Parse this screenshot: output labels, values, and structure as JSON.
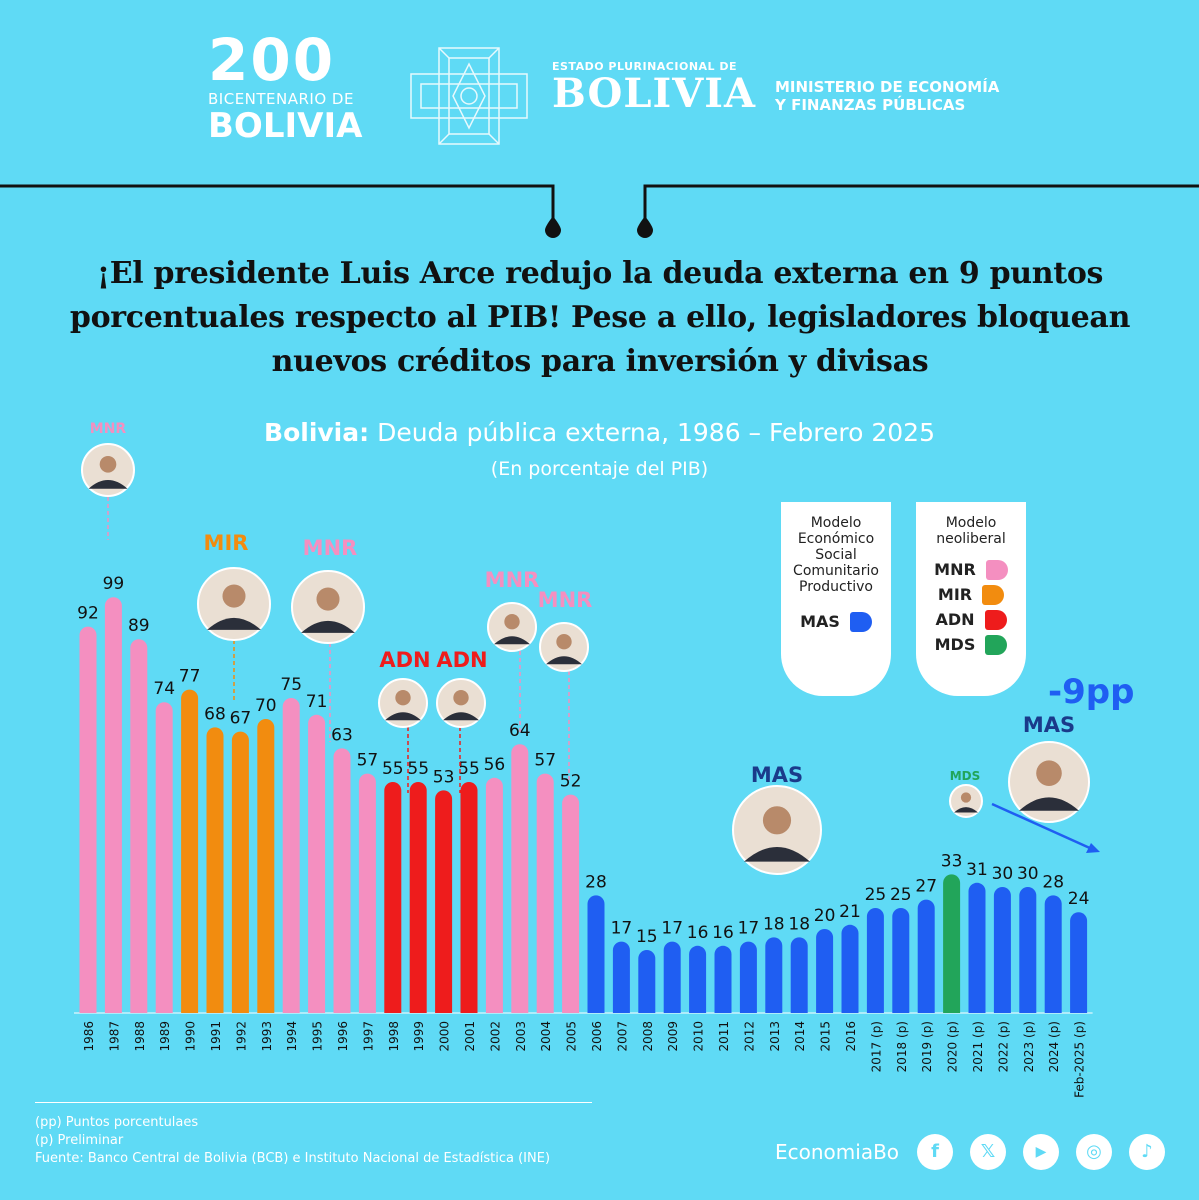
{
  "header": {
    "bicentenario_number": "200",
    "bicentenario_line1": "BICENTENARIO DE",
    "bicentenario_line2": "BOLIVIA",
    "estado_line1": "ESTADO PLURINACIONAL DE",
    "estado_line2": "BOLIVIA",
    "ministerio_line1": "MINISTERIO DE ECONOMÍA",
    "ministerio_line2": "Y FINANZAS PÚBLICAS"
  },
  "headline": "¡El presidente Luis Arce redujo la deuda externa en 9 puntos porcentuales respecto al PIB! Pese a ello, legisladores bloquean nuevos créditos para inversión y divisas",
  "chart_title_bold": "Bolivia:",
  "chart_title_rest": " Deuda pública externa, 1986 – Febrero 2025",
  "chart_subtitle": "(En porcentaje del PIB)",
  "legend": {
    "box1_title": "Modelo Económico Social Comunitario Productivo",
    "box1_items": [
      {
        "label": "MAS",
        "color": "#1f5ef2"
      }
    ],
    "box2_title": "Modelo neoliberal",
    "box2_items": [
      {
        "label": "MNR",
        "color": "#f48fc0"
      },
      {
        "label": "MIR",
        "color": "#f28c0f"
      },
      {
        "label": "ADN",
        "color": "#ee1c1c"
      },
      {
        "label": "MDS",
        "color": "#22a55a"
      }
    ]
  },
  "reduction_label": "-9pp",
  "party_tags": [
    {
      "label": "MNR",
      "color": "#f48fc0"
    },
    {
      "label": "MIR",
      "color": "#f28c0f"
    },
    {
      "label": "MNR",
      "color": "#f48fc0"
    },
    {
      "label": "ADN",
      "color": "#ee1c1c"
    },
    {
      "label": "ADN",
      "color": "#ee1c1c"
    },
    {
      "label": "MNR",
      "color": "#f48fc0"
    },
    {
      "label": "MNR",
      "color": "#f48fc0"
    },
    {
      "label": "MAS",
      "color": "#1a3a8a"
    },
    {
      "label": "MDS",
      "color": "#22a55a"
    },
    {
      "label": "MAS",
      "color": "#1a3a8a"
    }
  ],
  "chart_data": {
    "type": "bar",
    "categories": [
      "1986",
      "1987",
      "1988",
      "1989",
      "1990",
      "1991",
      "1992",
      "1993",
      "1994",
      "1995",
      "1996",
      "1997",
      "1998",
      "1999",
      "2000",
      "2001",
      "2002",
      "2003",
      "2004",
      "2005",
      "2006",
      "2007",
      "2008",
      "2009",
      "2010",
      "2011",
      "2012",
      "2013",
      "2014",
      "2015",
      "2016",
      "2017 (p)",
      "2018 (p)",
      "2019 (p)",
      "2020 (p)",
      "2021 (p)",
      "2022 (p)",
      "2023 (p)",
      "2024 (p)",
      "Feb-2025 (p)"
    ],
    "values": [
      92,
      99,
      89,
      74,
      77,
      68,
      67,
      70,
      75,
      71,
      63,
      57,
      55,
      55,
      53,
      55,
      56,
      64,
      57,
      52,
      28,
      17,
      15,
      17,
      16,
      16,
      17,
      18,
      18,
      20,
      21,
      25,
      25,
      27,
      33,
      31,
      30,
      30,
      28,
      24
    ],
    "party": [
      "MNR",
      "MNR",
      "MNR",
      "MNR",
      "MIR",
      "MIR",
      "MIR",
      "MIR",
      "MNR",
      "MNR",
      "MNR",
      "MNR",
      "ADN",
      "ADN",
      "ADN",
      "ADN",
      "MNR",
      "MNR",
      "MNR",
      "MNR",
      "MAS",
      "MAS",
      "MAS",
      "MAS",
      "MAS",
      "MAS",
      "MAS",
      "MAS",
      "MAS",
      "MAS",
      "MAS",
      "MAS",
      "MAS",
      "MAS",
      "MDS",
      "MAS",
      "MAS",
      "MAS",
      "MAS",
      "MAS"
    ],
    "colors": {
      "MNR": "#f48fc0",
      "MIR": "#f28c0f",
      "ADN": "#ee1c1c",
      "MDS": "#22a55a",
      "MAS": "#1f5ef2"
    },
    "title": "Bolivia: Deuda pública externa, 1986 – Febrero 2025",
    "ylabel": "",
    "xlabel": "",
    "ylim": [
      0,
      100
    ]
  },
  "footnotes": [
    "(pp) Puntos porcentulaes",
    "(p) Preliminar",
    "Fuente: Banco Central de Bolivia (BCB) e Instituto Nacional de Estadística (INE)"
  ],
  "footer": {
    "brand": "EconomiaBo",
    "social": [
      {
        "name": "facebook",
        "glyph": "f"
      },
      {
        "name": "x",
        "glyph": "𝕏"
      },
      {
        "name": "youtube",
        "glyph": "▶"
      },
      {
        "name": "instagram",
        "glyph": "◎"
      },
      {
        "name": "tiktok",
        "glyph": "♪"
      }
    ]
  }
}
